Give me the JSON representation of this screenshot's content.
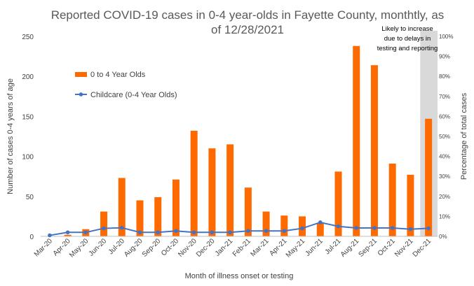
{
  "chart_data": {
    "type": "bar",
    "title_lines": [
      "Reported COVID-19 cases in 0-4 year-olds in Fayette County, monthtly, as",
      "of 12/28/2021"
    ],
    "xlabel": "Month of illness onset or testing",
    "ylabel": "Number of cases 0-4 years of age",
    "y2label": "Percentage of total cases",
    "ylim": [
      0,
      250
    ],
    "y2lim": [
      0,
      100
    ],
    "yticks": [
      "0",
      "50",
      "100",
      "150",
      "200",
      "250"
    ],
    "y2ticks": [
      "0%",
      "10%",
      "20%",
      "30%",
      "40%",
      "50%",
      "60%",
      "70%",
      "80%",
      "90%",
      "100%"
    ],
    "categories": [
      "Mar-20",
      "Apr-20",
      "May-20",
      "Jun-20",
      "Jul-20",
      "Aug-20",
      "Sep-20",
      "Oct-20",
      "Nov-20",
      "Dec-20",
      "Jan-21",
      "Feb-21",
      "Mar-21",
      "Apr-21",
      "May-21",
      "Jun-21",
      "Jul-21",
      "Aug-21",
      "Sep-21",
      "Oct-21",
      "Nov-21",
      "Dec-21"
    ],
    "series": [
      {
        "name": "0 to 4 Year Olds",
        "type": "bar",
        "axis": "left",
        "color": "#ff6a00",
        "values": [
          0,
          2,
          9,
          31,
          73,
          45,
          49,
          71,
          132,
          110,
          115,
          61,
          31,
          26,
          25,
          17,
          81,
          238,
          214,
          91,
          77,
          147
        ]
      },
      {
        "name": "Childcare (0-4 Year Olds)",
        "type": "line",
        "axis": "right",
        "color": "#4472c4",
        "values": [
          0.5,
          2,
          2,
          4,
          4.3,
          2,
          2,
          2.7,
          2,
          2,
          2,
          2.7,
          2.7,
          2.7,
          4,
          7,
          5,
          4.2,
          4.2,
          4.2,
          3.6,
          4
        ]
      }
    ],
    "shaded_category": "Dec-21",
    "annotation": [
      "Likely to increase",
      "due to delays in",
      "testing and reporting"
    ],
    "legend_position": "upper-left-inside",
    "grid": false
  }
}
